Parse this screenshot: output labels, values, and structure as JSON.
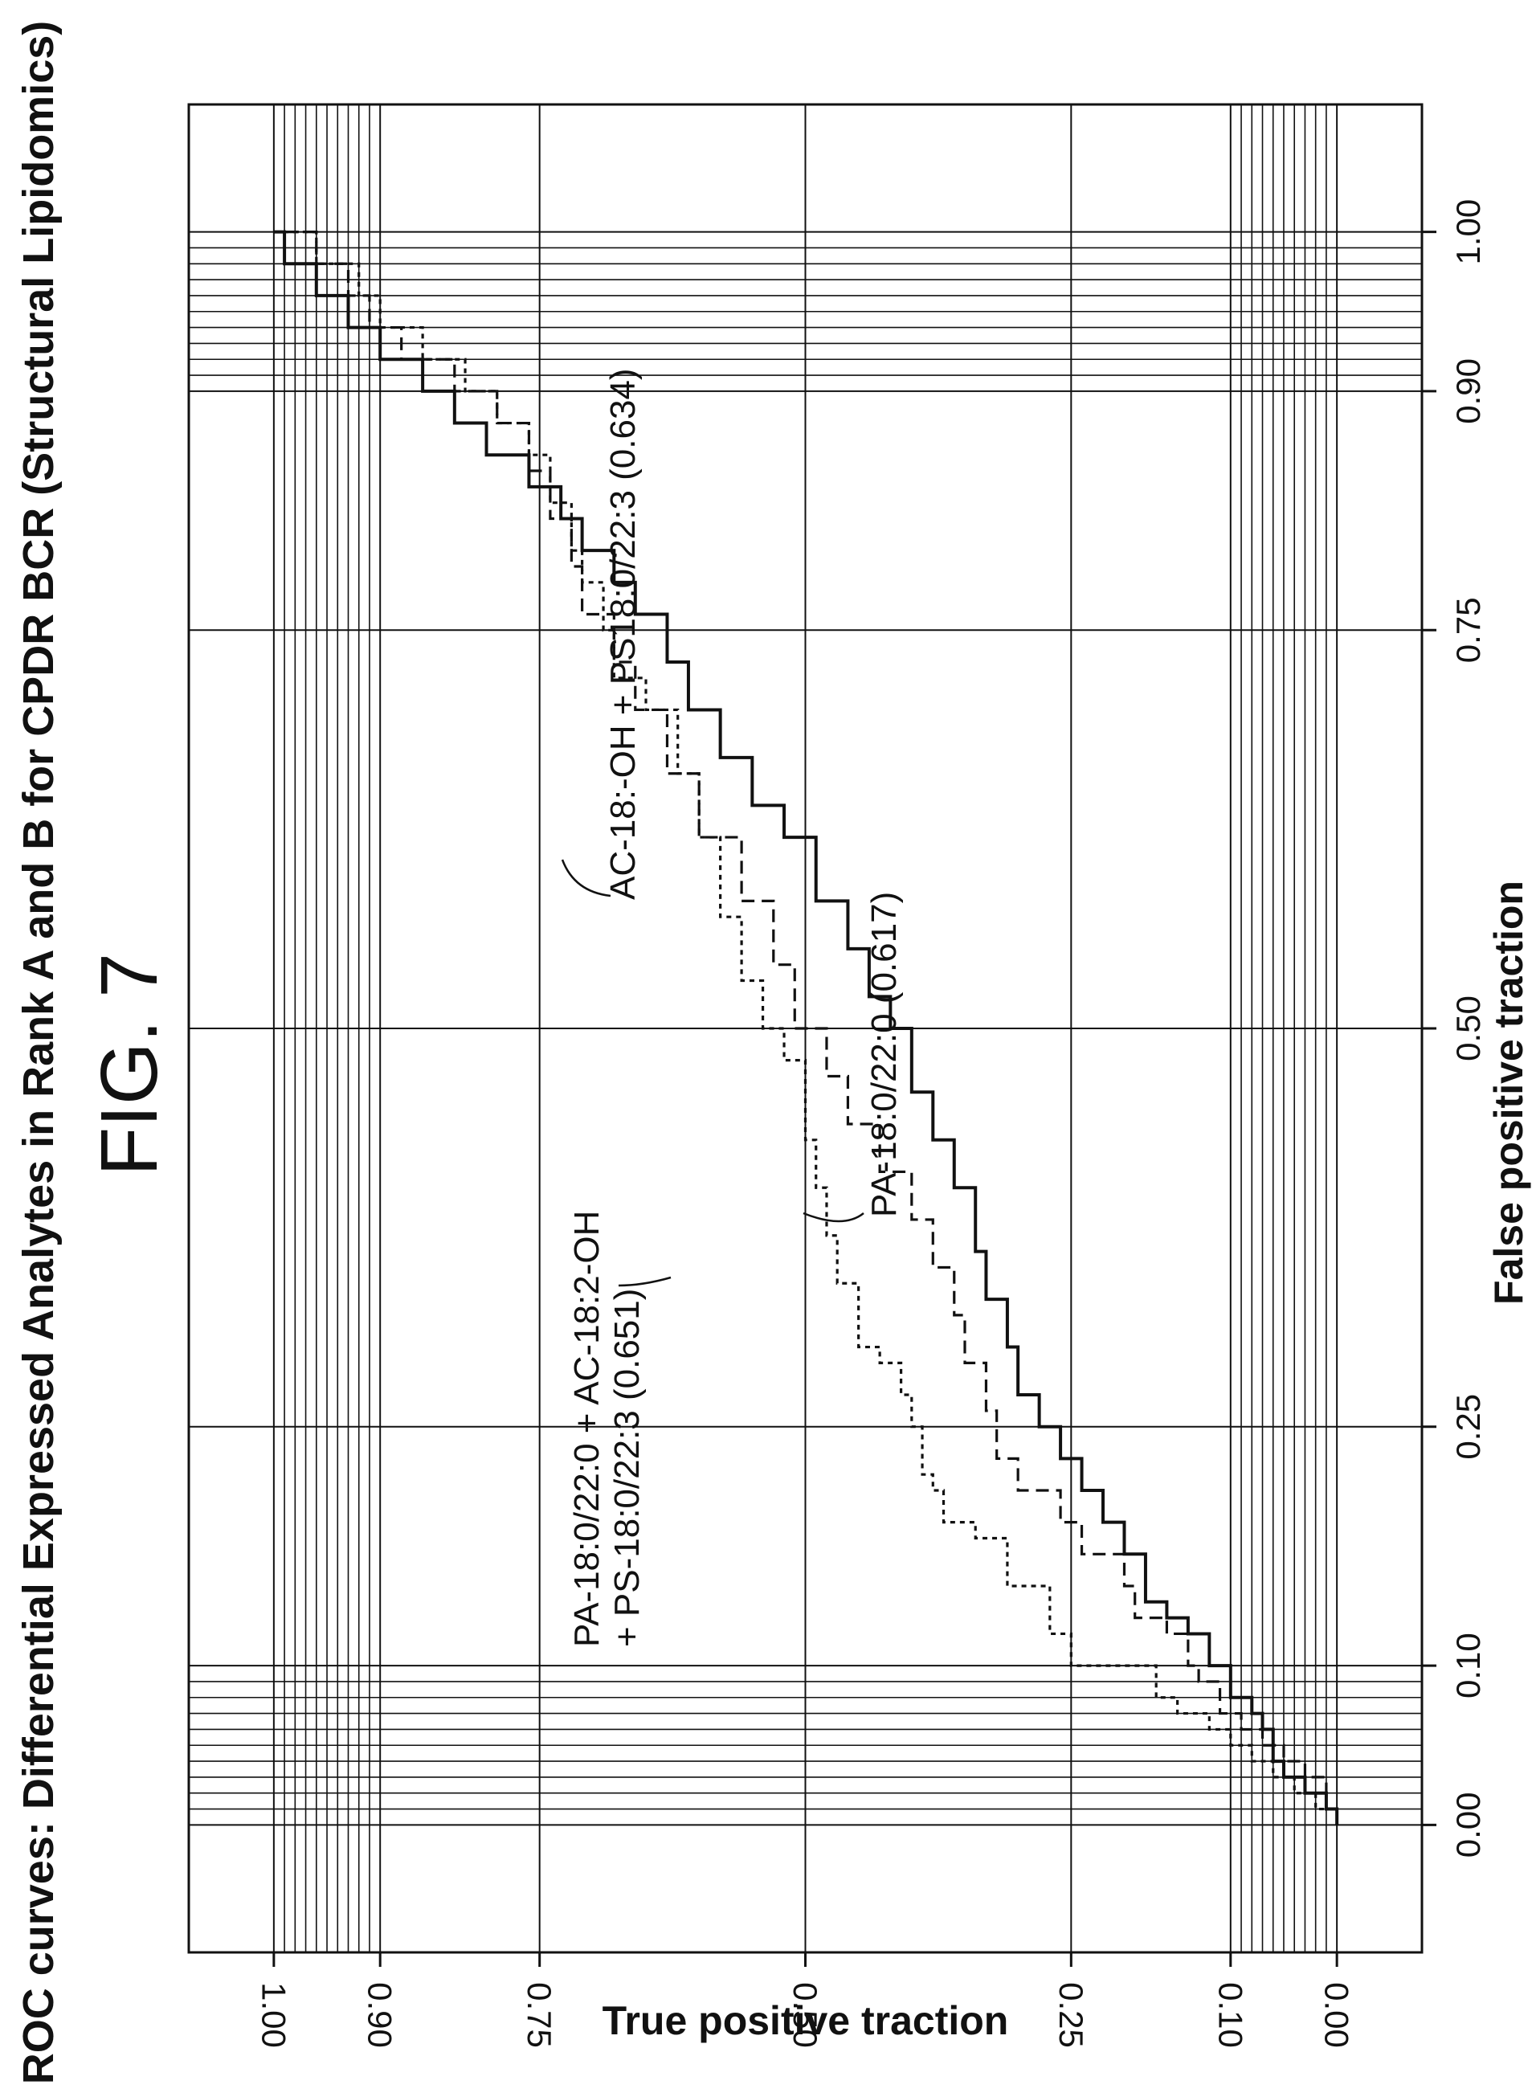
{
  "figure_label": "FIG. 7",
  "annotations": [
    {
      "line1": "PA-18:0/22:0 + AC-18:2-OH",
      "line2": "+ PS-18:0/22:3 (0.651)"
    },
    {
      "text": "PA-18:0/22:0 (0.617)"
    },
    {
      "text": "AC-18:-OH + PS18:0/22:3 (0.634)"
    }
  ],
  "chart_data": {
    "type": "line",
    "title": "ROC curves: Differential Expressed Analytes in Rank A and B for CPDR BCR (Structural Lipidomics)",
    "xlabel": "False positive traction",
    "ylabel": "True positive traction",
    "x_ticks": [
      "0.00",
      "0.10",
      "0.25",
      "0.50",
      "0.75",
      "0.90",
      "1.00"
    ],
    "y_ticks": [
      "0.00",
      "0.10",
      "0.25",
      "0.50",
      "0.75",
      "0.90",
      "1.00"
    ],
    "xlim": [
      -0.08,
      1.08
    ],
    "ylim": [
      -0.08,
      1.08
    ],
    "grid": true,
    "series": [
      {
        "name": "PA-18:0/22:0 + AC-18:2-OH + PS-18:0/22:3 (0.651)",
        "style": "dotted",
        "points": [
          [
            0,
            0
          ],
          [
            0.01,
            0.02
          ],
          [
            0.02,
            0.04
          ],
          [
            0.03,
            0.06
          ],
          [
            0.04,
            0.08
          ],
          [
            0.05,
            0.1
          ],
          [
            0.06,
            0.12
          ],
          [
            0.07,
            0.15
          ],
          [
            0.08,
            0.17
          ],
          [
            0.1,
            0.19
          ],
          [
            0.1,
            0.25
          ],
          [
            0.12,
            0.27
          ],
          [
            0.15,
            0.28
          ],
          [
            0.15,
            0.31
          ],
          [
            0.18,
            0.34
          ],
          [
            0.19,
            0.37
          ],
          [
            0.21,
            0.38
          ],
          [
            0.22,
            0.39
          ],
          [
            0.25,
            0.4
          ],
          [
            0.27,
            0.41
          ],
          [
            0.29,
            0.43
          ],
          [
            0.3,
            0.45
          ],
          [
            0.34,
            0.47
          ],
          [
            0.37,
            0.48
          ],
          [
            0.4,
            0.49
          ],
          [
            0.43,
            0.5
          ],
          [
            0.48,
            0.52
          ],
          [
            0.5,
            0.54
          ],
          [
            0.53,
            0.56
          ],
          [
            0.57,
            0.58
          ],
          [
            0.62,
            0.6
          ],
          [
            0.66,
            0.62
          ],
          [
            0.7,
            0.65
          ],
          [
            0.72,
            0.68
          ],
          [
            0.75,
            0.69
          ],
          [
            0.78,
            0.71
          ],
          [
            0.8,
            0.72
          ],
          [
            0.83,
            0.74
          ],
          [
            0.86,
            0.76
          ],
          [
            0.88,
            0.79
          ],
          [
            0.9,
            0.82
          ],
          [
            0.92,
            0.86
          ],
          [
            0.94,
            0.9
          ],
          [
            0.96,
            0.92
          ],
          [
            0.98,
            0.96
          ],
          [
            1.0,
            0.99
          ],
          [
            1.0,
            1.0
          ]
        ]
      },
      {
        "name": "PA-18:0/22:0 (0.617)",
        "style": "solid",
        "points": [
          [
            0,
            0
          ],
          [
            0.01,
            0.01
          ],
          [
            0.02,
            0.03
          ],
          [
            0.03,
            0.05
          ],
          [
            0.04,
            0.06
          ],
          [
            0.06,
            0.07
          ],
          [
            0.07,
            0.08
          ],
          [
            0.08,
            0.1
          ],
          [
            0.1,
            0.12
          ],
          [
            0.12,
            0.14
          ],
          [
            0.13,
            0.16
          ],
          [
            0.14,
            0.18
          ],
          [
            0.17,
            0.2
          ],
          [
            0.19,
            0.22
          ],
          [
            0.21,
            0.24
          ],
          [
            0.23,
            0.26
          ],
          [
            0.25,
            0.28
          ],
          [
            0.27,
            0.3
          ],
          [
            0.3,
            0.31
          ],
          [
            0.33,
            0.33
          ],
          [
            0.36,
            0.34
          ],
          [
            0.4,
            0.36
          ],
          [
            0.43,
            0.38
          ],
          [
            0.46,
            0.4
          ],
          [
            0.5,
            0.42
          ],
          [
            0.52,
            0.44
          ],
          [
            0.55,
            0.46
          ],
          [
            0.58,
            0.49
          ],
          [
            0.62,
            0.52
          ],
          [
            0.64,
            0.55
          ],
          [
            0.67,
            0.58
          ],
          [
            0.7,
            0.61
          ],
          [
            0.73,
            0.63
          ],
          [
            0.76,
            0.66
          ],
          [
            0.78,
            0.68
          ],
          [
            0.8,
            0.71
          ],
          [
            0.82,
            0.73
          ],
          [
            0.84,
            0.76
          ],
          [
            0.86,
            0.8
          ],
          [
            0.88,
            0.83
          ],
          [
            0.9,
            0.86
          ],
          [
            0.92,
            0.9
          ],
          [
            0.94,
            0.93
          ],
          [
            0.96,
            0.96
          ],
          [
            0.98,
            0.99
          ],
          [
            1.0,
            1.0
          ]
        ]
      },
      {
        "name": "AC-18:-OH + PS18:0/22:3 (0.634)",
        "style": "dashed",
        "points": [
          [
            0,
            0
          ],
          [
            0.01,
            0.01
          ],
          [
            0.03,
            0.03
          ],
          [
            0.04,
            0.05
          ],
          [
            0.05,
            0.07
          ],
          [
            0.06,
            0.09
          ],
          [
            0.07,
            0.11
          ],
          [
            0.09,
            0.13
          ],
          [
            0.1,
            0.14
          ],
          [
            0.12,
            0.16
          ],
          [
            0.13,
            0.19
          ],
          [
            0.15,
            0.2
          ],
          [
            0.17,
            0.24
          ],
          [
            0.19,
            0.26
          ],
          [
            0.21,
            0.3
          ],
          [
            0.23,
            0.32
          ],
          [
            0.26,
            0.33
          ],
          [
            0.29,
            0.35
          ],
          [
            0.32,
            0.36
          ],
          [
            0.35,
            0.38
          ],
          [
            0.38,
            0.4
          ],
          [
            0.41,
            0.43
          ],
          [
            0.44,
            0.46
          ],
          [
            0.47,
            0.48
          ],
          [
            0.5,
            0.51
          ],
          [
            0.54,
            0.53
          ],
          [
            0.58,
            0.56
          ],
          [
            0.62,
            0.6
          ],
          [
            0.66,
            0.63
          ],
          [
            0.7,
            0.66
          ],
          [
            0.73,
            0.68
          ],
          [
            0.76,
            0.71
          ],
          [
            0.79,
            0.72
          ],
          [
            0.82,
            0.74
          ],
          [
            0.85,
            0.76
          ],
          [
            0.88,
            0.79
          ],
          [
            0.9,
            0.83
          ],
          [
            0.92,
            0.88
          ],
          [
            0.94,
            0.91
          ],
          [
            0.96,
            0.93
          ],
          [
            0.98,
            0.96
          ],
          [
            1.0,
            0.99
          ],
          [
            1.0,
            1.0
          ]
        ]
      }
    ]
  }
}
